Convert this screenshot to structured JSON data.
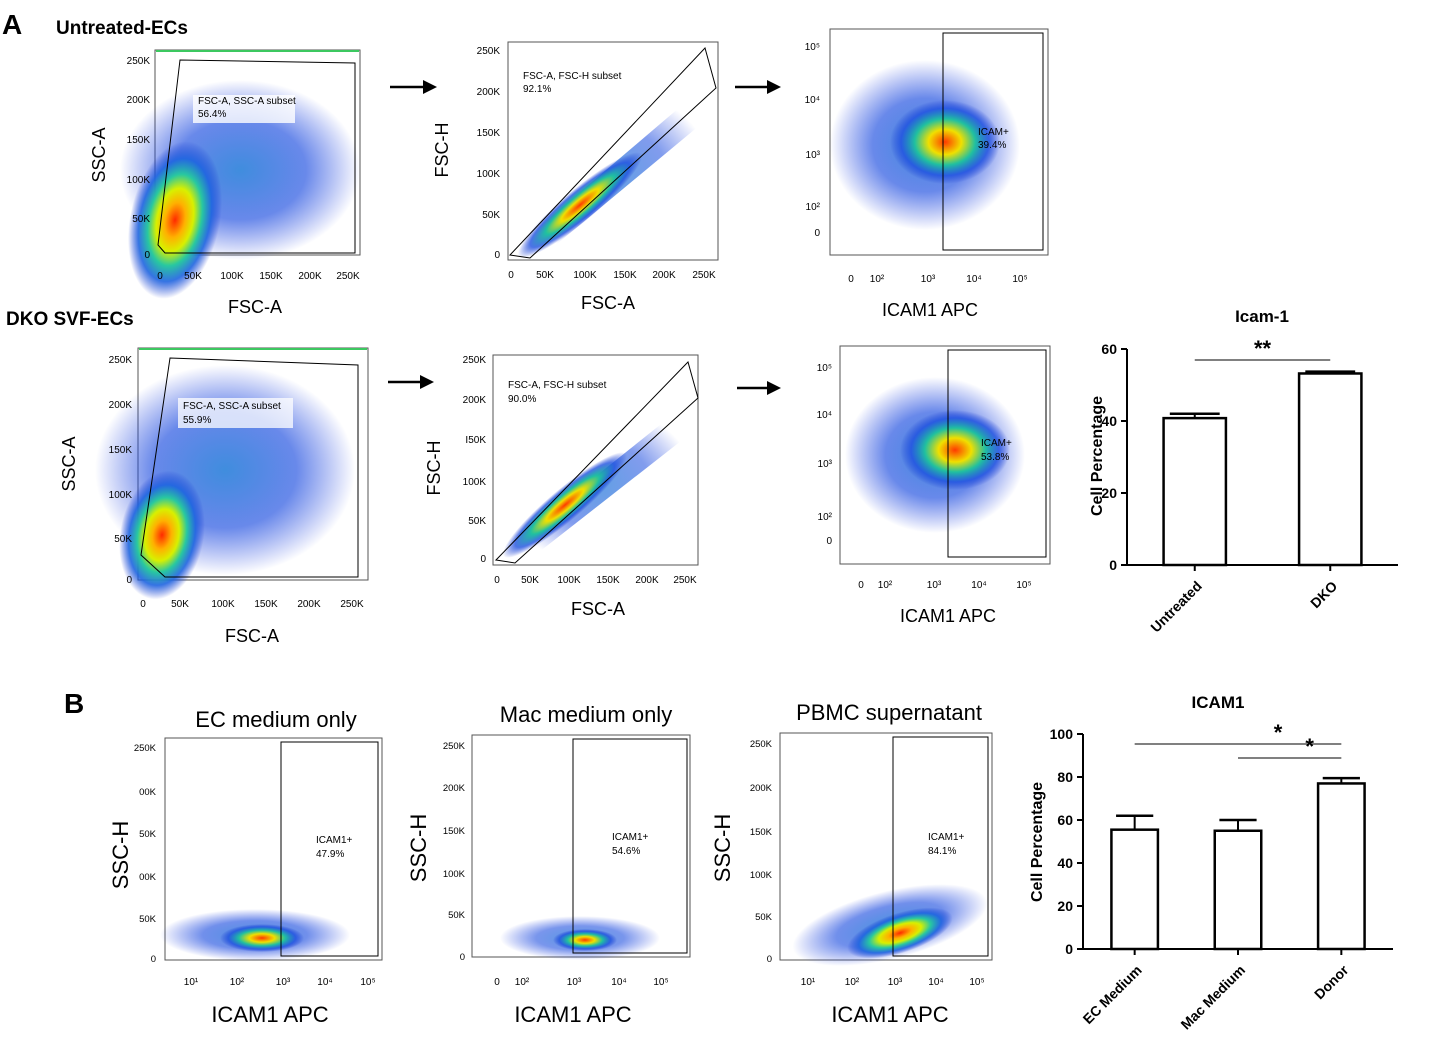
{
  "panel_a": {
    "letter": "A",
    "untreated_label": "Untreated-ECs",
    "dko_label": "DKO SVF-ECs"
  },
  "panel_b": {
    "letter": "B"
  },
  "scatter_axes": {
    "fsc_a": "FSC-A",
    "ssc_a": "SSC-A",
    "fsc_h": "FSC-H",
    "ssc_h": "SSC-H",
    "icam1_apc": "ICAM1 APC",
    "lin_ticks": [
      "0",
      "50K",
      "100K",
      "150K",
      "200K",
      "250K"
    ],
    "ssc_h_ticks_garbled": [
      "0",
      "50K",
      "00K",
      "50K",
      "00K",
      "250K"
    ],
    "fsc_h_ticks_dko": [
      "0",
      "50K",
      "100K",
      "I50K",
      "200K",
      "250K"
    ],
    "log_ticks": [
      "0",
      "10²",
      "10³",
      "10⁴",
      "10⁵"
    ],
    "log_ticks_b": [
      "10¹",
      "10²",
      "10³",
      "10⁴",
      "10⁵"
    ]
  },
  "gates": {
    "untreated": {
      "gate1_name": "FSC-A, SSC-A subset",
      "gate1_pct": "56.4%",
      "gate2_name": "FSC-A, FSC-H subset",
      "gate2_pct": "92.1%",
      "gate3_name": "ICAM+",
      "gate3_pct": "39.4%"
    },
    "dko": {
      "gate1_name": "FSC-A, SSC-A subset",
      "gate1_pct": "55.9%",
      "gate2_name": "FSC-A, FSC-H subset",
      "gate2_pct": "90.0%",
      "gate3_name": "ICAM+",
      "gate3_pct": "53.8%"
    },
    "ec_medium": {
      "title": "EC medium only",
      "gate_name": "ICAM1+",
      "gate_pct": "47.9%"
    },
    "mac_medium": {
      "title": "Mac medium only",
      "gate_name": "ICAM1+",
      "gate_pct": "54.6%"
    },
    "pbmc": {
      "title": "PBMC supernatant",
      "gate_name": "ICAM1+",
      "gate_pct": "84.1%"
    }
  },
  "chart_data": [
    {
      "type": "bar",
      "title": "Icam-1",
      "ylabel": "Cell Percentage",
      "xlabel": "",
      "categories": [
        "Untreated",
        "DKO"
      ],
      "values": [
        40.8,
        53.2
      ],
      "errors": [
        1.2,
        0.5
      ],
      "ylim": [
        0,
        60
      ],
      "yticks": [
        "0",
        "20",
        "40",
        "60"
      ],
      "significance": [
        {
          "between": [
            "Untreated",
            "DKO"
          ],
          "label": "**"
        }
      ]
    },
    {
      "type": "bar",
      "title": "ICAM1",
      "ylabel": "Cell Percentage",
      "xlabel": "",
      "categories": [
        "EC Medium",
        "Mac Medium",
        "Donor"
      ],
      "values": [
        55.5,
        55.0,
        77.0
      ],
      "errors": [
        6.5,
        5.0,
        2.5
      ],
      "ylim": [
        0,
        100
      ],
      "yticks": [
        "0",
        "20",
        "40",
        "60",
        "80",
        "100"
      ],
      "significance": [
        {
          "between": [
            "EC Medium",
            "Donor"
          ],
          "label": "*"
        },
        {
          "between": [
            "Mac Medium",
            "Donor"
          ],
          "label": "*"
        }
      ]
    }
  ]
}
